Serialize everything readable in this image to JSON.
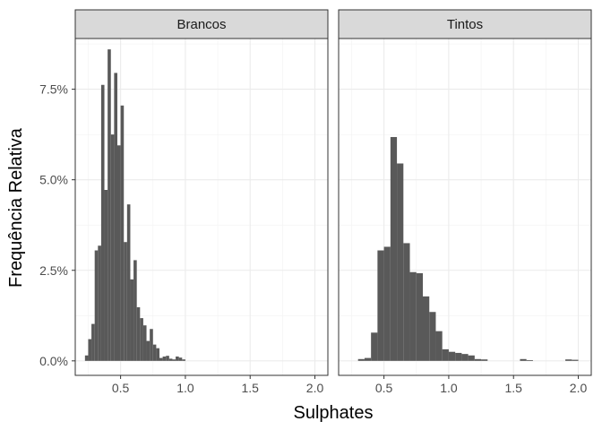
{
  "chart_data": {
    "type": "bar",
    "xlabel": "Sulphates",
    "ylabel": "Frequência Relativa",
    "xlim": [
      0.15,
      2.1
    ],
    "ylim": [
      -0.004,
      0.089
    ],
    "x_ticks": [
      0.5,
      1.0,
      1.5,
      2.0
    ],
    "x_tick_labels": [
      "0.5",
      "1.0",
      "1.5",
      "2.0"
    ],
    "y_ticks": [
      0,
      0.025,
      0.05,
      0.075
    ],
    "y_tick_labels": [
      "0.0%",
      "2.5%",
      "5.0%",
      "7.5%"
    ],
    "grid": true,
    "bar_color": "#595959",
    "panels": [
      {
        "strip": "Brancos",
        "bin_width": 0.025,
        "bins": [
          {
            "x": 0.2375,
            "y": 0.0015
          },
          {
            "x": 0.2625,
            "y": 0.006
          },
          {
            "x": 0.2875,
            "y": 0.0102
          },
          {
            "x": 0.3125,
            "y": 0.0305
          },
          {
            "x": 0.3375,
            "y": 0.0318
          },
          {
            "x": 0.3625,
            "y": 0.0762
          },
          {
            "x": 0.3875,
            "y": 0.0472
          },
          {
            "x": 0.4125,
            "y": 0.086
          },
          {
            "x": 0.4375,
            "y": 0.0625
          },
          {
            "x": 0.4625,
            "y": 0.0795
          },
          {
            "x": 0.4875,
            "y": 0.0595
          },
          {
            "x": 0.5125,
            "y": 0.0705
          },
          {
            "x": 0.5375,
            "y": 0.0328
          },
          {
            "x": 0.5625,
            "y": 0.0432
          },
          {
            "x": 0.5875,
            "y": 0.0225
          },
          {
            "x": 0.6125,
            "y": 0.0278
          },
          {
            "x": 0.6375,
            "y": 0.0148
          },
          {
            "x": 0.6625,
            "y": 0.0118
          },
          {
            "x": 0.6875,
            "y": 0.0098
          },
          {
            "x": 0.7125,
            "y": 0.0055
          },
          {
            "x": 0.7375,
            "y": 0.0088
          },
          {
            "x": 0.7625,
            "y": 0.0045
          },
          {
            "x": 0.7875,
            "y": 0.0035
          },
          {
            "x": 0.8125,
            "y": 0.0008
          },
          {
            "x": 0.8375,
            "y": 0.0012
          },
          {
            "x": 0.8625,
            "y": 0.0014
          },
          {
            "x": 0.8875,
            "y": 0.0006
          },
          {
            "x": 0.9125,
            "y": 0.0004
          },
          {
            "x": 0.9375,
            "y": 0.0012
          },
          {
            "x": 0.9625,
            "y": 0.0009
          },
          {
            "x": 0.9875,
            "y": 0.0004
          }
        ]
      },
      {
        "strip": "Tintos",
        "bin_width": 0.05,
        "bins": [
          {
            "x": 0.325,
            "y": 0.0005
          },
          {
            "x": 0.375,
            "y": 0.0008
          },
          {
            "x": 0.425,
            "y": 0.0078
          },
          {
            "x": 0.475,
            "y": 0.0305
          },
          {
            "x": 0.525,
            "y": 0.0315
          },
          {
            "x": 0.575,
            "y": 0.0618
          },
          {
            "x": 0.625,
            "y": 0.0545
          },
          {
            "x": 0.675,
            "y": 0.0325
          },
          {
            "x": 0.725,
            "y": 0.0245
          },
          {
            "x": 0.775,
            "y": 0.0242
          },
          {
            "x": 0.825,
            "y": 0.0178
          },
          {
            "x": 0.875,
            "y": 0.0135
          },
          {
            "x": 0.925,
            "y": 0.0082
          },
          {
            "x": 0.975,
            "y": 0.0032
          },
          {
            "x": 1.025,
            "y": 0.0025
          },
          {
            "x": 1.075,
            "y": 0.0022
          },
          {
            "x": 1.125,
            "y": 0.0019
          },
          {
            "x": 1.175,
            "y": 0.0015
          },
          {
            "x": 1.225,
            "y": 0.0005
          },
          {
            "x": 1.275,
            "y": 0.0004
          },
          {
            "x": 1.575,
            "y": 0.0005
          },
          {
            "x": 1.625,
            "y": 0.0002
          },
          {
            "x": 1.925,
            "y": 0.0004
          },
          {
            "x": 1.975,
            "y": 0.0003
          }
        ]
      }
    ]
  }
}
